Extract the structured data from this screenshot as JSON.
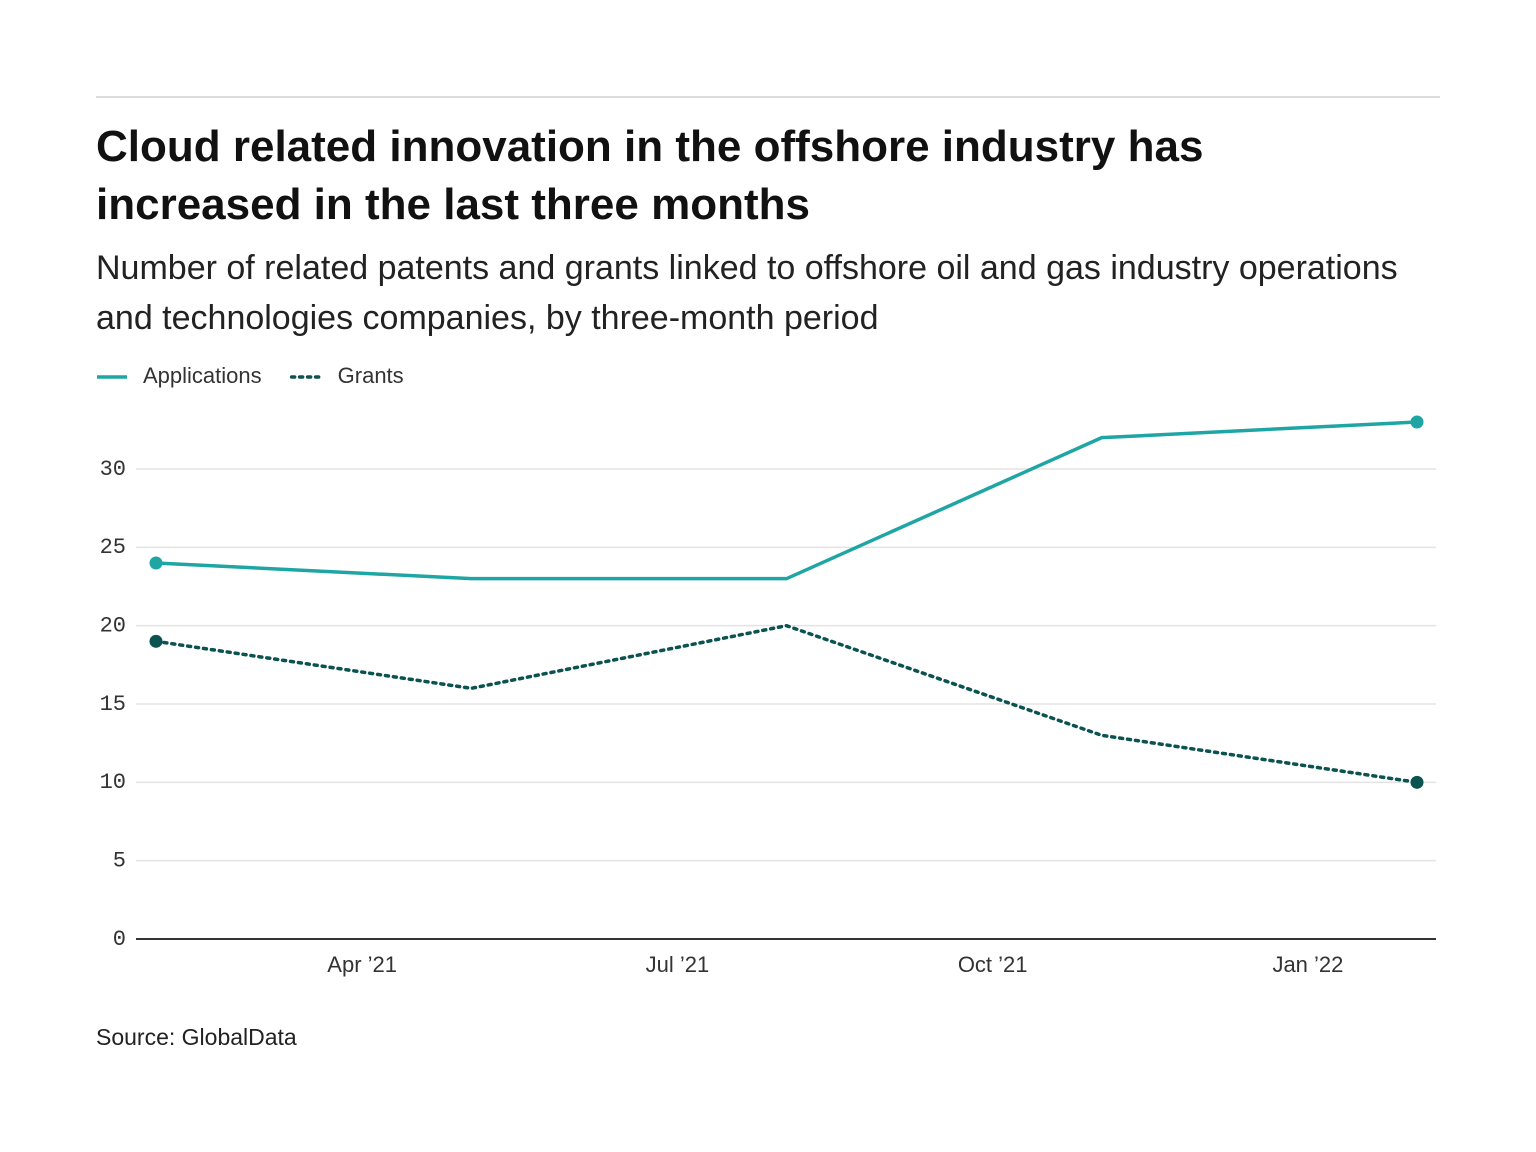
{
  "chart_data": {
    "type": "line",
    "title": "Cloud related innovation in the offshore industry has increased in the last three months",
    "subtitle": "Number of related patents and grants linked to offshore oil and gas industry operations and technologies companies, by three-month period",
    "source": "Source: GlobalData",
    "x": [
      "2021-02",
      "2021-05",
      "2021-08",
      "2021-11",
      "2022-02"
    ],
    "series": [
      {
        "name": "Applications",
        "color": "#1fa6a4",
        "style": "solid",
        "values": [
          24,
          23,
          23,
          32,
          33
        ]
      },
      {
        "name": "Grants",
        "color": "#0b5350",
        "style": "dotted",
        "values": [
          19,
          16,
          20,
          13,
          10
        ]
      }
    ],
    "xticks": [
      {
        "value": "2021-04",
        "label": "Apr ’21"
      },
      {
        "value": "2021-07",
        "label": "Jul ’21"
      },
      {
        "value": "2021-10",
        "label": "Oct ’21"
      },
      {
        "value": "2022-01",
        "label": "Jan ’22"
      }
    ],
    "ylim": [
      0,
      33
    ],
    "yticks": [
      0,
      5,
      10,
      15,
      20,
      25,
      30
    ],
    "grid": true,
    "legend": "top-left"
  }
}
